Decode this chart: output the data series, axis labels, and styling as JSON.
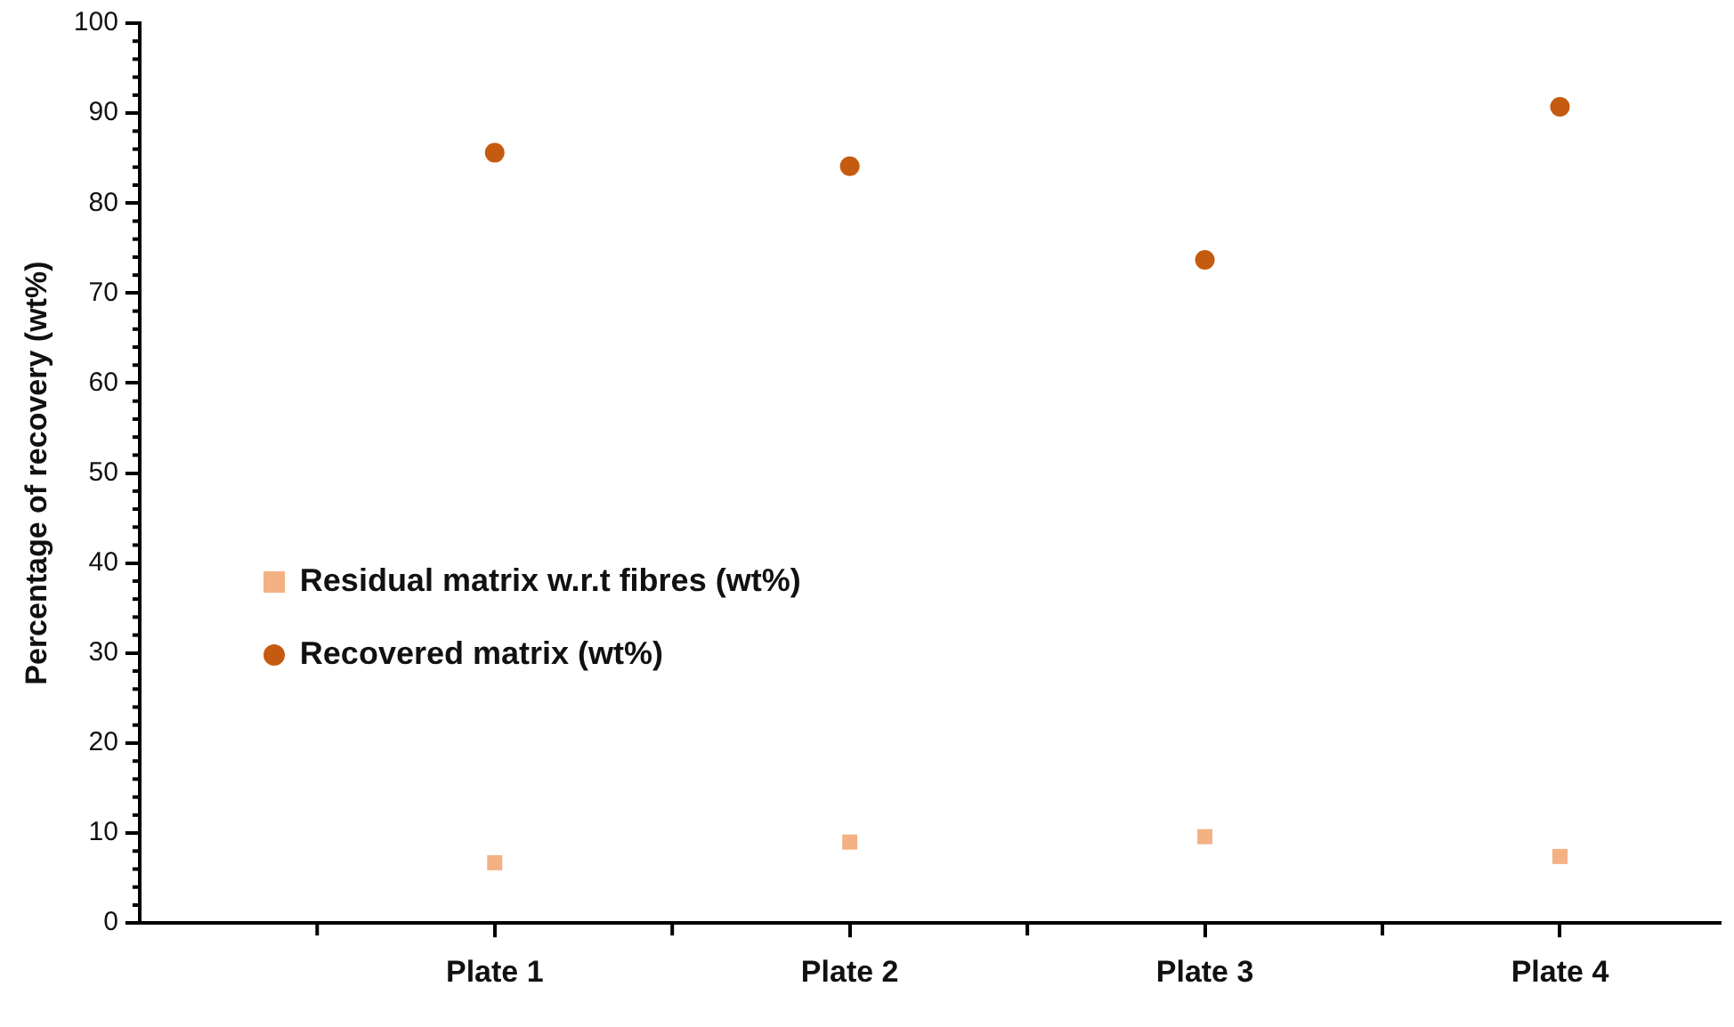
{
  "chart_data": {
    "type": "scatter",
    "ylabel": "Percentage of recovery (wt%)",
    "categories": [
      "Plate 1",
      "Plate 2",
      "Plate 3",
      "Plate 4"
    ],
    "series": [
      {
        "name": "Residual matrix w.r.t fibres (wt%)",
        "color": "#f4b183",
        "marker": "square",
        "values": [
          6.7,
          9.0,
          9.6,
          7.4
        ]
      },
      {
        "name": "Recovered matrix (wt%)",
        "color": "#c55a11",
        "marker": "circle",
        "values": [
          85.6,
          84.1,
          73.7,
          90.7
        ]
      }
    ],
    "ylim": [
      0,
      100
    ],
    "yticks": [
      0,
      10,
      20,
      30,
      40,
      50,
      60,
      70,
      80,
      90,
      100
    ],
    "grid": false,
    "legend": "left"
  }
}
